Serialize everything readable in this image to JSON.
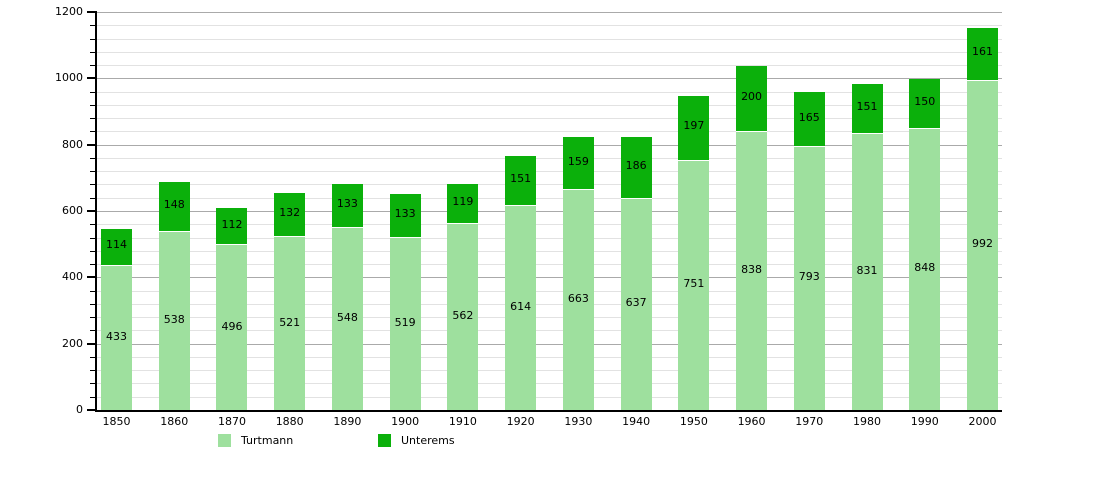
{
  "chart_data": {
    "type": "bar",
    "stacked": true,
    "title": "",
    "xlabel": "",
    "ylabel": "",
    "categories": [
      "1850",
      "1860",
      "1870",
      "1880",
      "1890",
      "1900",
      "1910",
      "1920",
      "1930",
      "1940",
      "1950",
      "1960",
      "1970",
      "1980",
      "1990",
      "2000"
    ],
    "series": [
      {
        "name": "Turtmann",
        "color": "#9ee09e",
        "values": [
          433,
          538,
          496,
          521,
          548,
          519,
          562,
          614,
          663,
          637,
          751,
          838,
          793,
          831,
          848,
          992
        ]
      },
      {
        "name": "Unterems",
        "color": "#0bb00b",
        "values": [
          114,
          148,
          112,
          132,
          133,
          133,
          119,
          151,
          159,
          186,
          197,
          200,
          165,
          151,
          150,
          161
        ]
      }
    ],
    "totals": [
      547,
      686,
      608,
      653,
      681,
      652,
      681,
      765,
      822,
      823,
      948,
      1038,
      958,
      982,
      998,
      1153
    ],
    "ylim": [
      0,
      1200
    ],
    "yticks": [
      0,
      200,
      400,
      600,
      800,
      1000,
      1200
    ],
    "y_major_step": 200,
    "y_minor_step": 40,
    "grid": "horizontal",
    "value_labels": true,
    "legend_position": "bottom"
  },
  "colors": {
    "turtmann": "#9ee09e",
    "unterems": "#0bb00b",
    "grid_minor": "#e2e2e2",
    "grid_major": "#aaaaaa",
    "axis": "#000000",
    "text": "#000000",
    "background": "#ffffff"
  },
  "legend": {
    "turtmann_label": "Turtmann",
    "unterems_label": "Unterems"
  }
}
